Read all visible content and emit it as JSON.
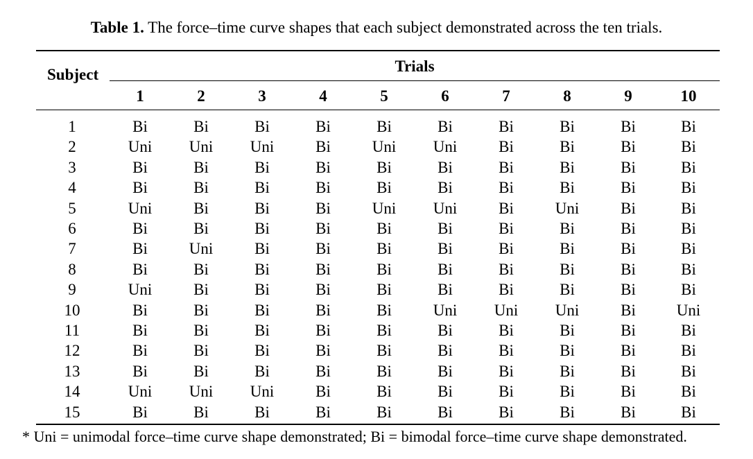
{
  "caption": {
    "label": "Table 1.",
    "text": "The force–time curve shapes that each subject demonstrated across the ten trials."
  },
  "table": {
    "subject_header": "Subject",
    "trials_header": "Trials",
    "trial_numbers": [
      "1",
      "2",
      "3",
      "4",
      "5",
      "6",
      "7",
      "8",
      "9",
      "10"
    ],
    "rows": [
      {
        "subject": "1",
        "values": [
          "Bi",
          "Bi",
          "Bi",
          "Bi",
          "Bi",
          "Bi",
          "Bi",
          "Bi",
          "Bi",
          "Bi"
        ]
      },
      {
        "subject": "2",
        "values": [
          "Uni",
          "Uni",
          "Uni",
          "Bi",
          "Uni",
          "Uni",
          "Bi",
          "Bi",
          "Bi",
          "Bi"
        ]
      },
      {
        "subject": "3",
        "values": [
          "Bi",
          "Bi",
          "Bi",
          "Bi",
          "Bi",
          "Bi",
          "Bi",
          "Bi",
          "Bi",
          "Bi"
        ]
      },
      {
        "subject": "4",
        "values": [
          "Bi",
          "Bi",
          "Bi",
          "Bi",
          "Bi",
          "Bi",
          "Bi",
          "Bi",
          "Bi",
          "Bi"
        ]
      },
      {
        "subject": "5",
        "values": [
          "Uni",
          "Bi",
          "Bi",
          "Bi",
          "Uni",
          "Uni",
          "Bi",
          "Uni",
          "Bi",
          "Bi"
        ]
      },
      {
        "subject": "6",
        "values": [
          "Bi",
          "Bi",
          "Bi",
          "Bi",
          "Bi",
          "Bi",
          "Bi",
          "Bi",
          "Bi",
          "Bi"
        ]
      },
      {
        "subject": "7",
        "values": [
          "Bi",
          "Uni",
          "Bi",
          "Bi",
          "Bi",
          "Bi",
          "Bi",
          "Bi",
          "Bi",
          "Bi"
        ]
      },
      {
        "subject": "8",
        "values": [
          "Bi",
          "Bi",
          "Bi",
          "Bi",
          "Bi",
          "Bi",
          "Bi",
          "Bi",
          "Bi",
          "Bi"
        ]
      },
      {
        "subject": "9",
        "values": [
          "Uni",
          "Bi",
          "Bi",
          "Bi",
          "Bi",
          "Bi",
          "Bi",
          "Bi",
          "Bi",
          "Bi"
        ]
      },
      {
        "subject": "10",
        "values": [
          "Bi",
          "Bi",
          "Bi",
          "Bi",
          "Bi",
          "Uni",
          "Uni",
          "Uni",
          "Bi",
          "Uni"
        ]
      },
      {
        "subject": "11",
        "values": [
          "Bi",
          "Bi",
          "Bi",
          "Bi",
          "Bi",
          "Bi",
          "Bi",
          "Bi",
          "Bi",
          "Bi"
        ]
      },
      {
        "subject": "12",
        "values": [
          "Bi",
          "Bi",
          "Bi",
          "Bi",
          "Bi",
          "Bi",
          "Bi",
          "Bi",
          "Bi",
          "Bi"
        ]
      },
      {
        "subject": "13",
        "values": [
          "Bi",
          "Bi",
          "Bi",
          "Bi",
          "Bi",
          "Bi",
          "Bi",
          "Bi",
          "Bi",
          "Bi"
        ]
      },
      {
        "subject": "14",
        "values": [
          "Uni",
          "Uni",
          "Uni",
          "Bi",
          "Bi",
          "Bi",
          "Bi",
          "Bi",
          "Bi",
          "Bi"
        ]
      },
      {
        "subject": "15",
        "values": [
          "Bi",
          "Bi",
          "Bi",
          "Bi",
          "Bi",
          "Bi",
          "Bi",
          "Bi",
          "Bi",
          "Bi"
        ]
      }
    ]
  },
  "footnote": "* Uni = unimodal force–time curve shape demonstrated; Bi = bimodal force–time curve shape demonstrated."
}
